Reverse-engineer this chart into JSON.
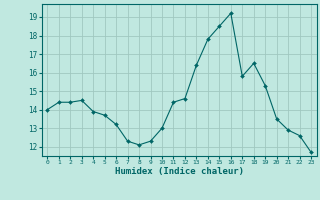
{
  "x": [
    0,
    1,
    2,
    3,
    4,
    5,
    6,
    7,
    8,
    9,
    10,
    11,
    12,
    13,
    14,
    15,
    16,
    17,
    18,
    19,
    20,
    21,
    22,
    23
  ],
  "y": [
    14.0,
    14.4,
    14.4,
    14.5,
    13.9,
    13.7,
    13.2,
    12.3,
    12.1,
    12.3,
    13.0,
    14.4,
    14.6,
    16.4,
    17.8,
    18.5,
    19.2,
    15.8,
    16.5,
    15.3,
    13.5,
    12.9,
    12.6,
    11.7
  ],
  "line_color": "#006666",
  "marker_color": "#006666",
  "bg_color": "#c0e8e0",
  "grid_major_color": "#a0c8c0",
  "grid_minor_color": "#b8ddd8",
  "xlabel": "Humidex (Indice chaleur)",
  "ylim": [
    11.5,
    19.7
  ],
  "xlim": [
    -0.5,
    23.5
  ],
  "yticks": [
    12,
    13,
    14,
    15,
    16,
    17,
    18,
    19
  ],
  "xticks": [
    0,
    1,
    2,
    3,
    4,
    5,
    6,
    7,
    8,
    9,
    10,
    11,
    12,
    13,
    14,
    15,
    16,
    17,
    18,
    19,
    20,
    21,
    22,
    23
  ]
}
